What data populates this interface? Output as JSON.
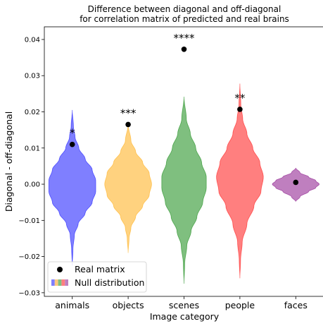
{
  "chart_data": {
    "type": "violin",
    "title_line1": "Difference between diagonal and off-diagonal",
    "title_line2": "for correlation matrix of predicted and real brains",
    "xlabel": "Image category",
    "ylabel": "Diagonal - off-diagonal",
    "ylim": [
      -0.031,
      0.0435
    ],
    "yticks": [
      0.04,
      0.03,
      0.02,
      0.01,
      0.0,
      -0.01,
      -0.02,
      -0.03
    ],
    "ytick_labels": [
      "0.04",
      "0.03",
      "0.02",
      "0.01",
      "0.00",
      "−0.01",
      "−0.02",
      "−0.03"
    ],
    "categories": [
      "animals",
      "objects",
      "scenes",
      "people",
      "faces"
    ],
    "real_values": [
      0.011,
      0.0165,
      0.0373,
      0.0207,
      0.0005
    ],
    "significance": [
      "*",
      "***",
      "****",
      "**",
      ""
    ],
    "colors": [
      "#0000ff",
      "#ffa500",
      "#008000",
      "#ff0000",
      "#800080"
    ],
    "null_distributions": [
      {
        "min": -0.0225,
        "max": 0.0205,
        "profile": [
          [
            -0.0225,
            0.0
          ],
          [
            -0.018,
            0.03
          ],
          [
            -0.014,
            0.09
          ],
          [
            -0.011,
            0.25
          ],
          [
            -0.008,
            0.55
          ],
          [
            -0.005,
            0.85
          ],
          [
            -0.002,
            1.0
          ],
          [
            0.001,
            1.0
          ],
          [
            0.004,
            0.85
          ],
          [
            0.007,
            0.55
          ],
          [
            0.01,
            0.28
          ],
          [
            0.013,
            0.12
          ],
          [
            0.016,
            0.05
          ],
          [
            0.0205,
            0.0
          ]
        ]
      },
      {
        "min": -0.019,
        "max": 0.0165,
        "profile": [
          [
            -0.019,
            0.0
          ],
          [
            -0.015,
            0.04
          ],
          [
            -0.012,
            0.12
          ],
          [
            -0.009,
            0.32
          ],
          [
            -0.006,
            0.62
          ],
          [
            -0.003,
            0.9
          ],
          [
            0.0,
            1.0
          ],
          [
            0.003,
            0.9
          ],
          [
            0.006,
            0.62
          ],
          [
            0.009,
            0.32
          ],
          [
            0.012,
            0.12
          ],
          [
            0.0165,
            0.0
          ]
        ]
      },
      {
        "min": -0.0275,
        "max": 0.0242,
        "profile": [
          [
            -0.0275,
            0.0
          ],
          [
            -0.022,
            0.03
          ],
          [
            -0.017,
            0.12
          ],
          [
            -0.013,
            0.3
          ],
          [
            -0.009,
            0.55
          ],
          [
            -0.005,
            0.8
          ],
          [
            -0.001,
            0.95
          ],
          [
            0.002,
            0.95
          ],
          [
            0.006,
            0.75
          ],
          [
            0.01,
            0.5
          ],
          [
            0.014,
            0.27
          ],
          [
            0.018,
            0.1
          ],
          [
            0.0242,
            0.0
          ]
        ]
      },
      {
        "min": -0.026,
        "max": 0.0278,
        "profile": [
          [
            -0.026,
            0.0
          ],
          [
            -0.021,
            0.03
          ],
          [
            -0.016,
            0.1
          ],
          [
            -0.011,
            0.3
          ],
          [
            -0.006,
            0.6
          ],
          [
            -0.002,
            0.9
          ],
          [
            0.002,
            1.0
          ],
          [
            0.006,
            0.85
          ],
          [
            0.01,
            0.55
          ],
          [
            0.014,
            0.3
          ],
          [
            0.018,
            0.12
          ],
          [
            0.022,
            0.04
          ],
          [
            0.0278,
            0.0
          ]
        ]
      },
      {
        "min": -0.0048,
        "max": 0.0045,
        "profile": [
          [
            -0.0048,
            0.0
          ],
          [
            -0.0035,
            0.18
          ],
          [
            -0.002,
            0.55
          ],
          [
            -0.001,
            0.85
          ],
          [
            0.0,
            1.0
          ],
          [
            0.001,
            0.85
          ],
          [
            0.002,
            0.55
          ],
          [
            0.0032,
            0.18
          ],
          [
            0.0045,
            0.0
          ]
        ]
      }
    ],
    "violin_half_widths": [
      0.42,
      0.42,
      0.42,
      0.42,
      0.42
    ],
    "legend": {
      "placement": "lower-left",
      "entries": [
        "Real matrix",
        "Null distribution"
      ],
      "null_swatch_colors": [
        "#7f7fff",
        "#ffc87f",
        "#7fbf7f",
        "#ff7f7f",
        "#bf7fbf"
      ]
    }
  }
}
